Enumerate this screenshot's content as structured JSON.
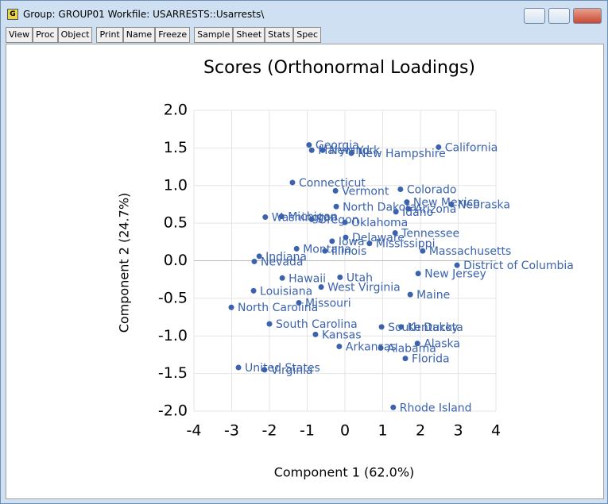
{
  "window": {
    "title": "Group: GROUP01   Workfile: USARRESTS::Usarrests\\"
  },
  "toolbar": [
    "View",
    "Proc",
    "Object",
    "Print",
    "Name",
    "Freeze",
    "Sample",
    "Sheet",
    "Stats",
    "Spec"
  ],
  "chart_data": {
    "type": "scatter",
    "title": "Scores (Orthonormal Loadings)",
    "x_label": "Component 1 (62.0%)",
    "y_label": "Component 2 (24.7%)",
    "xlim": [
      -4,
      4
    ],
    "ylim": [
      -2,
      2
    ],
    "xticks": [
      -4,
      -3,
      -2,
      -1,
      0,
      1,
      2,
      3,
      4
    ],
    "yticks": [
      {
        "value": 2,
        "label": "2.0"
      },
      {
        "value": 1.5,
        "label": "1.5"
      },
      {
        "value": 1,
        "label": "1.0"
      },
      {
        "value": 0.5,
        "label": "0.5"
      },
      {
        "value": 0,
        "label": "0.0"
      },
      {
        "value": -0.5,
        "label": "-0.5"
      },
      {
        "value": -1,
        "label": "-1.0"
      },
      {
        "value": -1.5,
        "label": "-1.5"
      },
      {
        "value": -2,
        "label": "-2.0"
      }
    ],
    "grid": true,
    "color": "#3b63ad",
    "labels": [
      "Georgia",
      "Maryland",
      "New York",
      "New Hampshire",
      "California",
      "Connecticut",
      "Vermont",
      "Colorado",
      "New Mexico",
      "North Dakota",
      "Arizona",
      "Idaho",
      "Nebraska",
      "Washington",
      "Michigan",
      "Oregon",
      "Oklahoma",
      "Tennessee",
      "Delaware",
      "Iowa",
      "Mississippi",
      "Montana",
      "Illinois",
      "Indiana",
      "Massachusetts",
      "Nevada",
      "District of Columbia",
      "New Jersey",
      "Hawaii",
      "Utah",
      "West Virginia",
      "Louisiana",
      "Maine",
      "Missouri",
      "North Carolina",
      "South Carolina",
      "South Dakota",
      "Kentucky",
      "Kansas",
      "Alaska",
      "Arkansas",
      "Alabama",
      "Florida",
      "United States",
      "Virginia",
      "Rhode Island"
    ],
    "x": [
      -0.95,
      -0.88,
      -0.59,
      0.17,
      2.48,
      -1.39,
      -0.25,
      1.47,
      1.64,
      -0.23,
      1.68,
      1.35,
      2.82,
      -2.11,
      -1.68,
      -0.88,
      0.0,
      1.33,
      0.02,
      -0.34,
      0.65,
      -1.28,
      -0.53,
      -2.27,
      2.06,
      -2.4,
      2.97,
      1.94,
      -1.66,
      -0.13,
      -0.63,
      -2.42,
      1.73,
      -1.22,
      -3.01,
      -2.0,
      0.97,
      1.49,
      -0.78,
      1.92,
      -0.15,
      0.95,
      1.6,
      -2.82,
      -2.13,
      1.28
    ],
    "values": [
      1.54,
      1.47,
      1.47,
      1.43,
      1.51,
      1.04,
      0.93,
      0.95,
      0.78,
      0.72,
      0.69,
      0.65,
      0.75,
      0.58,
      0.59,
      0.55,
      0.51,
      0.37,
      0.31,
      0.26,
      0.23,
      0.16,
      0.13,
      0.06,
      0.13,
      -0.01,
      -0.06,
      -0.17,
      -0.23,
      -0.22,
      -0.35,
      -0.4,
      -0.45,
      -0.56,
      -0.62,
      -0.84,
      -0.88,
      -0.88,
      -0.98,
      -1.1,
      -1.14,
      -1.16,
      -1.3,
      -1.42,
      -1.45,
      -1.95
    ]
  }
}
